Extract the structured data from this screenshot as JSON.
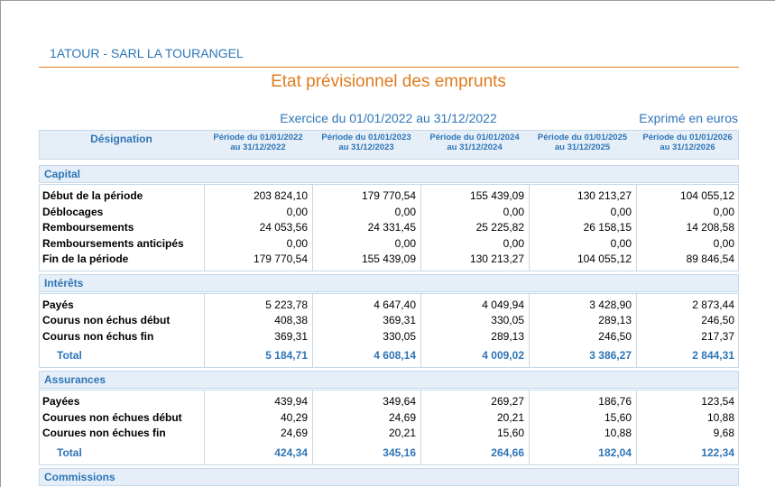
{
  "header": {
    "company": "1ATOUR - SARL LA TOURANGEL",
    "title": "Etat prévisionnel des emprunts",
    "period": "Exercice du 01/01/2022 au 31/12/2022",
    "unit": "Exprimé en euros"
  },
  "table": {
    "designation": "Désignation",
    "columns": [
      [
        "Période du 01/01/2022",
        "au 31/12/2022"
      ],
      [
        "Période du 01/01/2023",
        "au 31/12/2023"
      ],
      [
        "Période du 01/01/2024",
        "au 31/12/2024"
      ],
      [
        "Période du 01/01/2025",
        "au 31/12/2025"
      ],
      [
        "Période du 01/01/2026",
        "au 31/12/2026"
      ]
    ],
    "sections": [
      {
        "name": "Capital",
        "rows": [
          {
            "label": "Début de la période",
            "values": [
              "203 824,10",
              "179 770,54",
              "155 439,09",
              "130 213,27",
              "104 055,12"
            ]
          },
          {
            "label": "Déblocages",
            "values": [
              "0,00",
              "0,00",
              "0,00",
              "0,00",
              "0,00"
            ]
          },
          {
            "label": "Remboursements",
            "values": [
              "24 053,56",
              "24 331,45",
              "25 225,82",
              "26 158,15",
              "14 208,58"
            ]
          },
          {
            "label": "Remboursements anticipés",
            "values": [
              "0,00",
              "0,00",
              "0,00",
              "0,00",
              "0,00"
            ]
          },
          {
            "label": "Fin de la période",
            "values": [
              "179 770,54",
              "155 439,09",
              "130 213,27",
              "104 055,12",
              "89 846,54"
            ]
          }
        ]
      },
      {
        "name": "Intérêts",
        "rows": [
          {
            "label": "Payés",
            "values": [
              "5 223,78",
              "4 647,40",
              "4 049,94",
              "3 428,90",
              "2 873,44"
            ]
          },
          {
            "label": "Courus non échus début",
            "values": [
              "408,38",
              "369,31",
              "330,05",
              "289,13",
              "246,50"
            ]
          },
          {
            "label": "Courus non échus fin",
            "values": [
              "369,31",
              "330,05",
              "289,13",
              "246,50",
              "217,37"
            ]
          }
        ],
        "total": {
          "label": "Total",
          "values": [
            "5 184,71",
            "4 608,14",
            "4 009,02",
            "3 386,27",
            "2 844,31"
          ]
        }
      },
      {
        "name": "Assurances",
        "rows": [
          {
            "label": "Payées",
            "values": [
              "439,94",
              "349,64",
              "269,27",
              "186,76",
              "123,54"
            ]
          },
          {
            "label": "Courues non échues début",
            "values": [
              "40,29",
              "24,69",
              "20,21",
              "15,60",
              "10,88"
            ]
          },
          {
            "label": "Courues non échues fin",
            "values": [
              "24,69",
              "20,21",
              "15,60",
              "10,88",
              "9,68"
            ]
          }
        ],
        "total": {
          "label": "Total",
          "values": [
            "424,34",
            "345,16",
            "264,66",
            "182,04",
            "122,34"
          ]
        }
      },
      {
        "name": "Commissions",
        "rows": []
      }
    ]
  }
}
